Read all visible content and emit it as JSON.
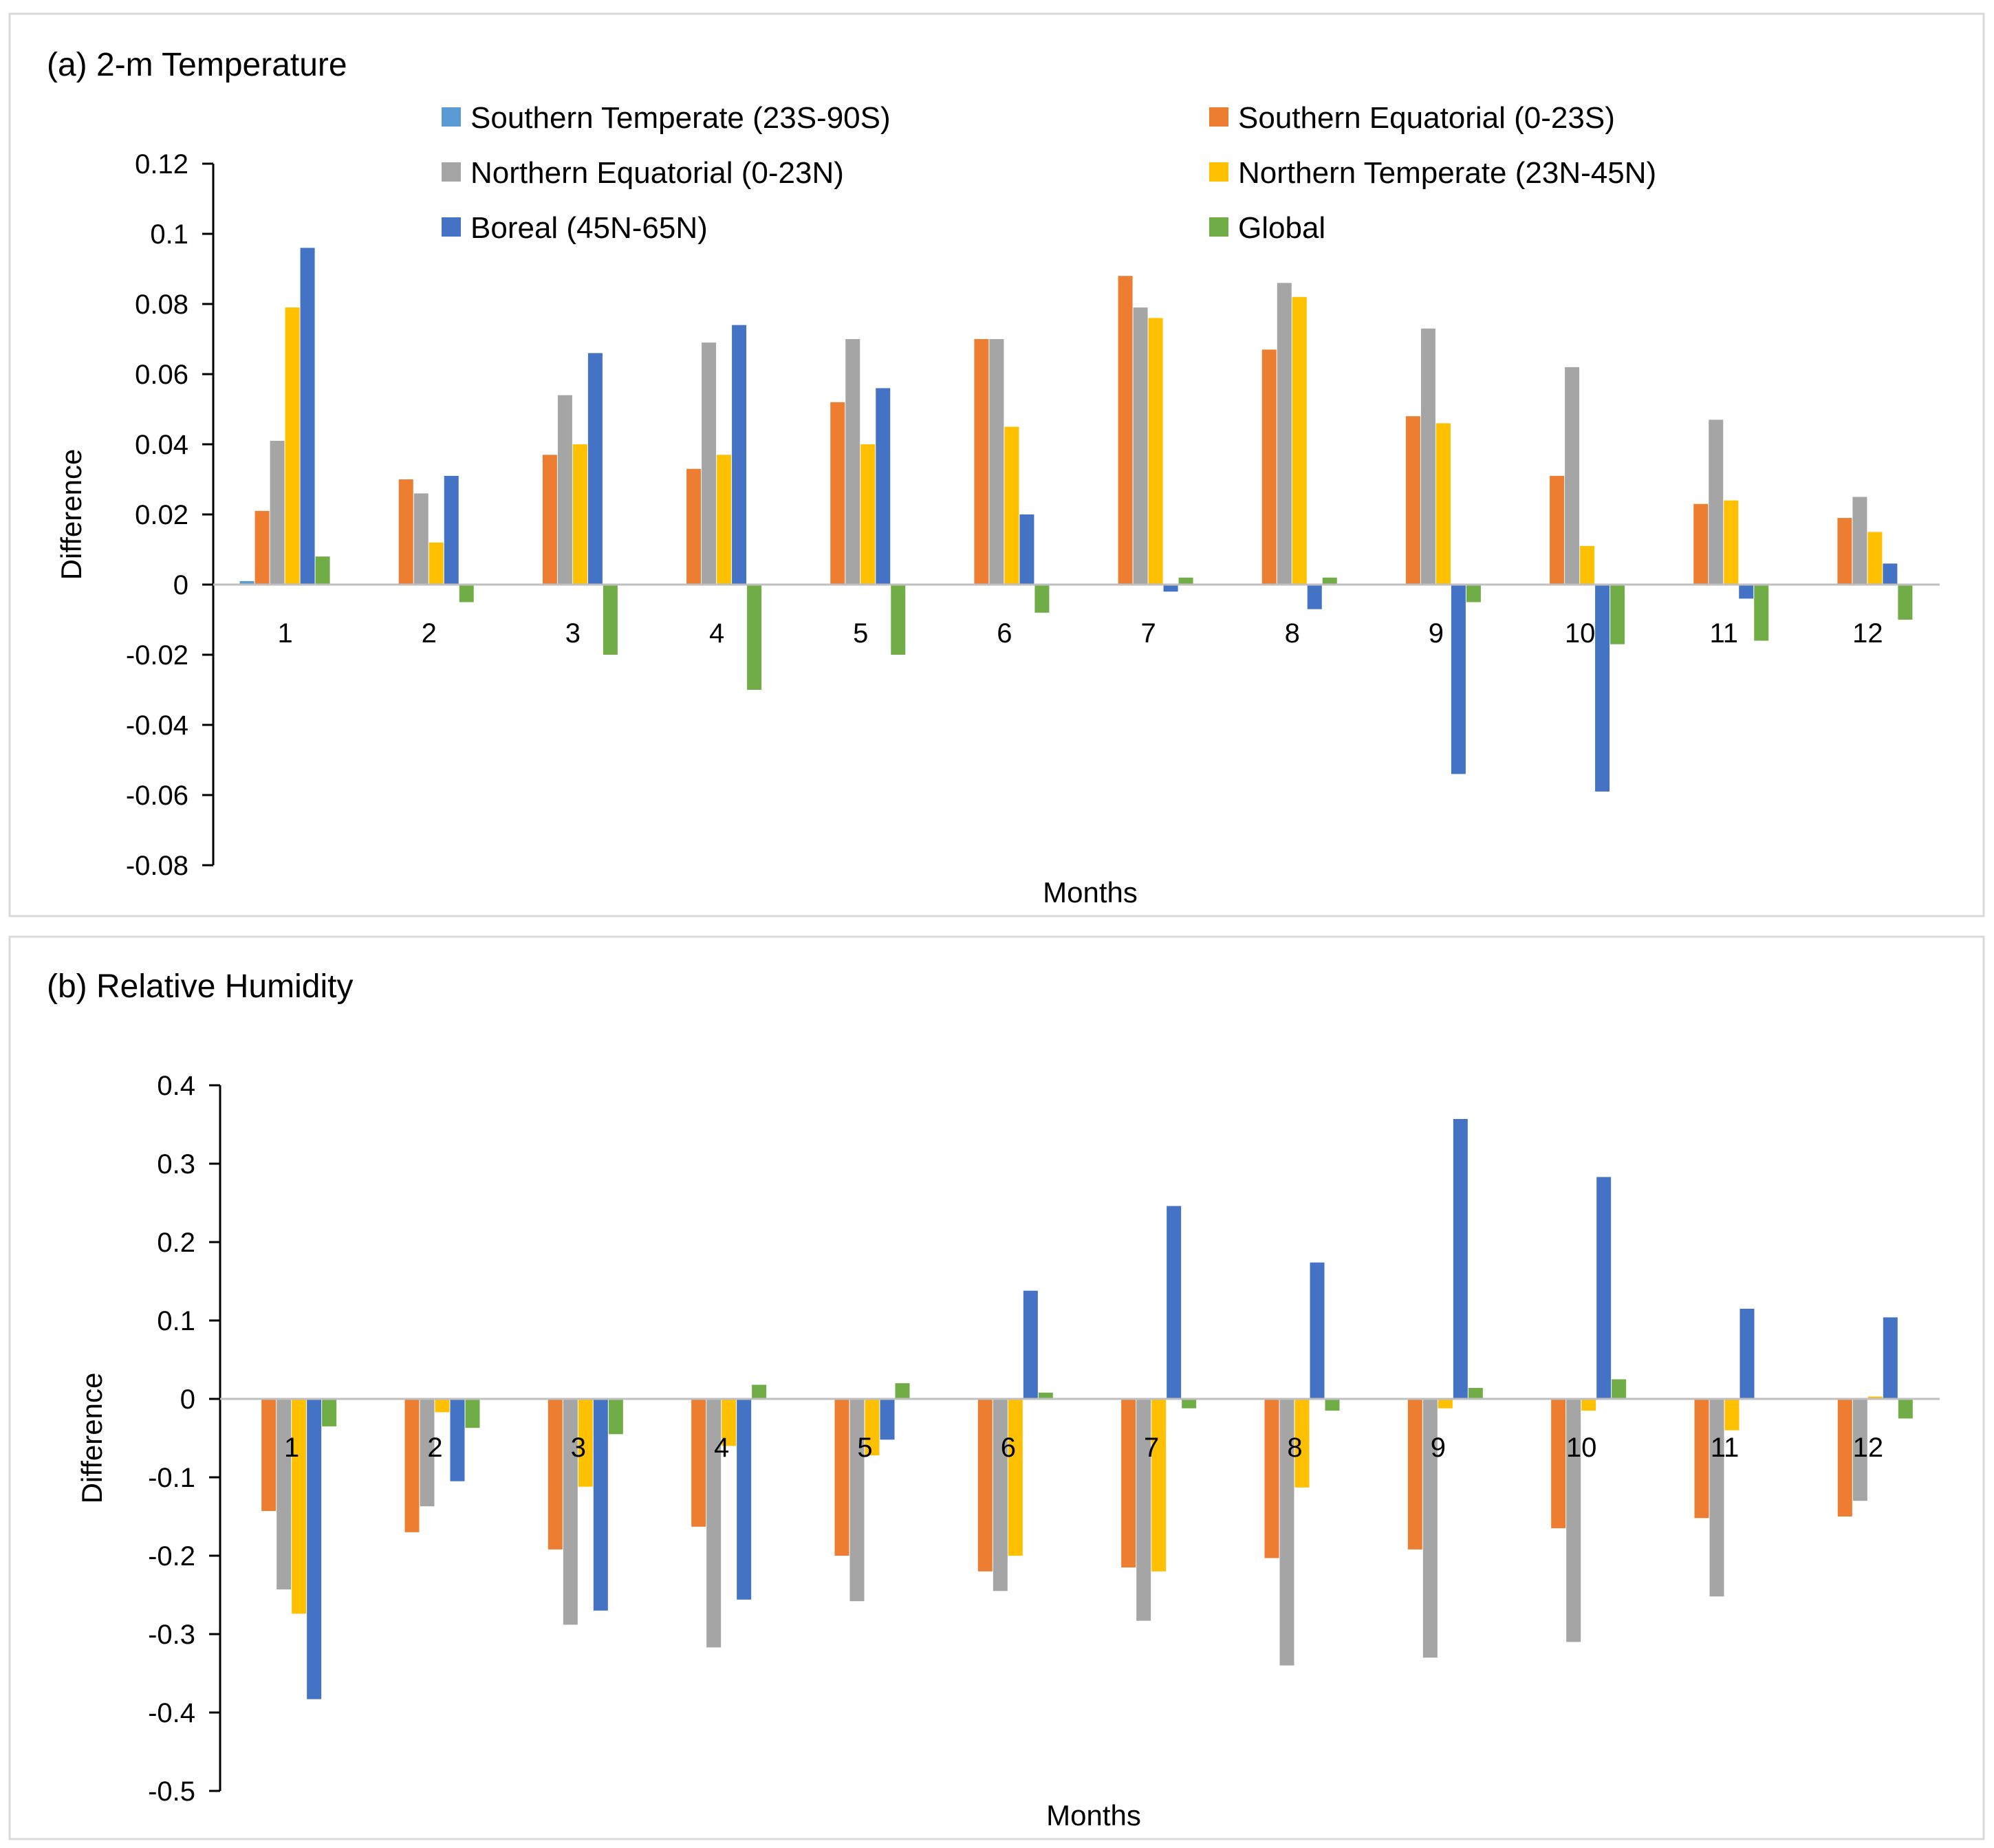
{
  "colors": {
    "southern_temperate": "#5b9bd5",
    "southern_equatorial": "#ed7d31",
    "northern_equatorial": "#a5a5a5",
    "northern_temperate": "#ffc000",
    "boreal": "#4472c4",
    "global": "#70ad47"
  },
  "chart_data": [
    {
      "type": "bar",
      "title": "(a) 2-m Temperature",
      "xlabel": "Months",
      "ylabel": "Difference",
      "ylim": [
        -0.08,
        0.12
      ],
      "yticks": [
        -0.08,
        -0.06,
        -0.04,
        -0.02,
        0,
        0.02,
        0.04,
        0.06,
        0.08,
        0.1,
        0.12
      ],
      "ytick_labels": [
        "-0.08",
        "-0.06",
        "-0.04",
        "-0.02",
        "0",
        "0.02",
        "0.04",
        "0.06",
        "0.08",
        "0.1",
        "0.12"
      ],
      "categories": [
        "1",
        "2",
        "3",
        "4",
        "5",
        "6",
        "7",
        "8",
        "9",
        "10",
        "11",
        "12"
      ],
      "legend_position": "top",
      "series": [
        {
          "name": "Southern Temperate (23S-90S)",
          "color_key": "southern_temperate",
          "values": [
            0.001,
            0,
            0,
            0,
            0,
            0,
            0,
            0,
            0,
            0,
            0,
            0
          ]
        },
        {
          "name": "Southern Equatorial (0-23S)",
          "color_key": "southern_equatorial",
          "values": [
            0.021,
            0.03,
            0.037,
            0.033,
            0.052,
            0.07,
            0.088,
            0.067,
            0.048,
            0.031,
            0.023,
            0.019
          ]
        },
        {
          "name": "Northern Equatorial (0-23N)",
          "color_key": "northern_equatorial",
          "values": [
            0.041,
            0.026,
            0.054,
            0.069,
            0.07,
            0.07,
            0.079,
            0.086,
            0.073,
            0.062,
            0.047,
            0.025
          ]
        },
        {
          "name": "Northern Temperate (23N-45N)",
          "color_key": "northern_temperate",
          "values": [
            0.079,
            0.012,
            0.04,
            0.037,
            0.04,
            0.045,
            0.076,
            0.082,
            0.046,
            0.011,
            0.024,
            0.015
          ]
        },
        {
          "name": "Boreal (45N-65N)",
          "color_key": "boreal",
          "values": [
            0.096,
            0.031,
            0.066,
            0.074,
            0.056,
            0.02,
            -0.002,
            -0.007,
            -0.054,
            -0.059,
            -0.004,
            0.006
          ]
        },
        {
          "name": "Global",
          "color_key": "global",
          "values": [
            0.008,
            -0.005,
            -0.02,
            -0.03,
            -0.02,
            -0.008,
            0.002,
            0.002,
            -0.005,
            -0.017,
            -0.016,
            -0.01
          ]
        }
      ]
    },
    {
      "type": "bar",
      "title": "(b) Relative Humidity",
      "xlabel": "Months",
      "ylabel": "Difference",
      "ylim": [
        -0.5,
        0.4
      ],
      "yticks": [
        -0.5,
        -0.4,
        -0.3,
        -0.2,
        -0.1,
        0,
        0.1,
        0.2,
        0.3,
        0.4
      ],
      "ytick_labels": [
        "-0.5",
        "-0.4",
        "-0.3",
        "-0.2",
        "-0.1",
        "0",
        "0.1",
        "0.2",
        "0.3",
        "0.4"
      ],
      "categories": [
        "1",
        "2",
        "3",
        "4",
        "5",
        "6",
        "7",
        "8",
        "9",
        "10",
        "11",
        "12"
      ],
      "series": [
        {
          "name": "Southern Temperate (23S-90S)",
          "color_key": "southern_temperate",
          "values": [
            0,
            0,
            0,
            0,
            0,
            0,
            0,
            0,
            0,
            0,
            0,
            0
          ]
        },
        {
          "name": "Southern Equatorial (0-23S)",
          "color_key": "southern_equatorial",
          "values": [
            -0.143,
            -0.17,
            -0.192,
            -0.163,
            -0.2,
            -0.22,
            -0.215,
            -0.203,
            -0.192,
            -0.165,
            -0.152,
            -0.15
          ]
        },
        {
          "name": "Northern Equatorial (0-23N)",
          "color_key": "northern_equatorial",
          "values": [
            -0.243,
            -0.137,
            -0.288,
            -0.317,
            -0.258,
            -0.245,
            -0.283,
            -0.34,
            -0.33,
            -0.31,
            -0.252,
            -0.13
          ]
        },
        {
          "name": "Northern Temperate (23N-45N)",
          "color_key": "northern_temperate",
          "values": [
            -0.274,
            -0.017,
            -0.112,
            -0.06,
            -0.072,
            -0.2,
            -0.22,
            -0.113,
            -0.012,
            -0.015,
            -0.04,
            0.003
          ]
        },
        {
          "name": "Boreal (45N-65N)",
          "color_key": "boreal",
          "values": [
            -0.383,
            -0.105,
            -0.27,
            -0.256,
            -0.052,
            0.138,
            0.246,
            0.174,
            0.357,
            0.283,
            0.115,
            0.104
          ]
        },
        {
          "name": "Global",
          "color_key": "global",
          "values": [
            -0.035,
            -0.037,
            -0.045,
            0.018,
            0.02,
            0.008,
            -0.012,
            -0.015,
            0.014,
            0.025,
            0,
            -0.025
          ]
        }
      ]
    }
  ]
}
